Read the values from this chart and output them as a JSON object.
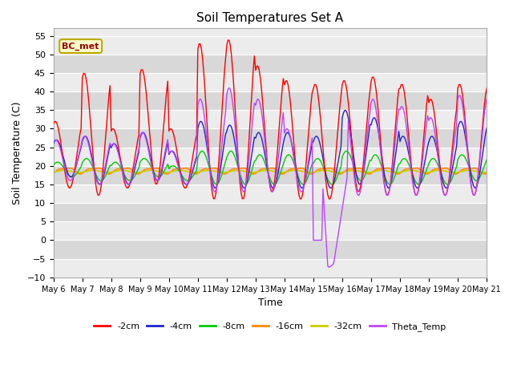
{
  "title": "Soil Temperatures Set A",
  "xlabel": "Time",
  "ylabel": "Soil Temperature (C)",
  "ylim": [
    -10,
    57
  ],
  "yticks": [
    -10,
    -5,
    0,
    5,
    10,
    15,
    20,
    25,
    30,
    35,
    40,
    45,
    50,
    55
  ],
  "x_tick_days": [
    6,
    7,
    8,
    9,
    10,
    11,
    12,
    13,
    14,
    15,
    16,
    17,
    18,
    19,
    20,
    21
  ],
  "annotation_label": "BC_met",
  "series_colors": {
    "-2cm": "#ff0000",
    "-4cm": "#2222cc",
    "-8cm": "#00cc00",
    "-16cm": "#ff8800",
    "-32cm": "#cccc00",
    "Theta_Temp": "#bb44ff"
  },
  "background_color": "#ffffff",
  "plot_bg_light": "#ececec",
  "plot_bg_dark": "#d8d8d8",
  "grid_color": "#ffffff",
  "title_fontsize": 11,
  "axis_label_fontsize": 9,
  "tick_fontsize": 8,
  "legend_fontsize": 9
}
